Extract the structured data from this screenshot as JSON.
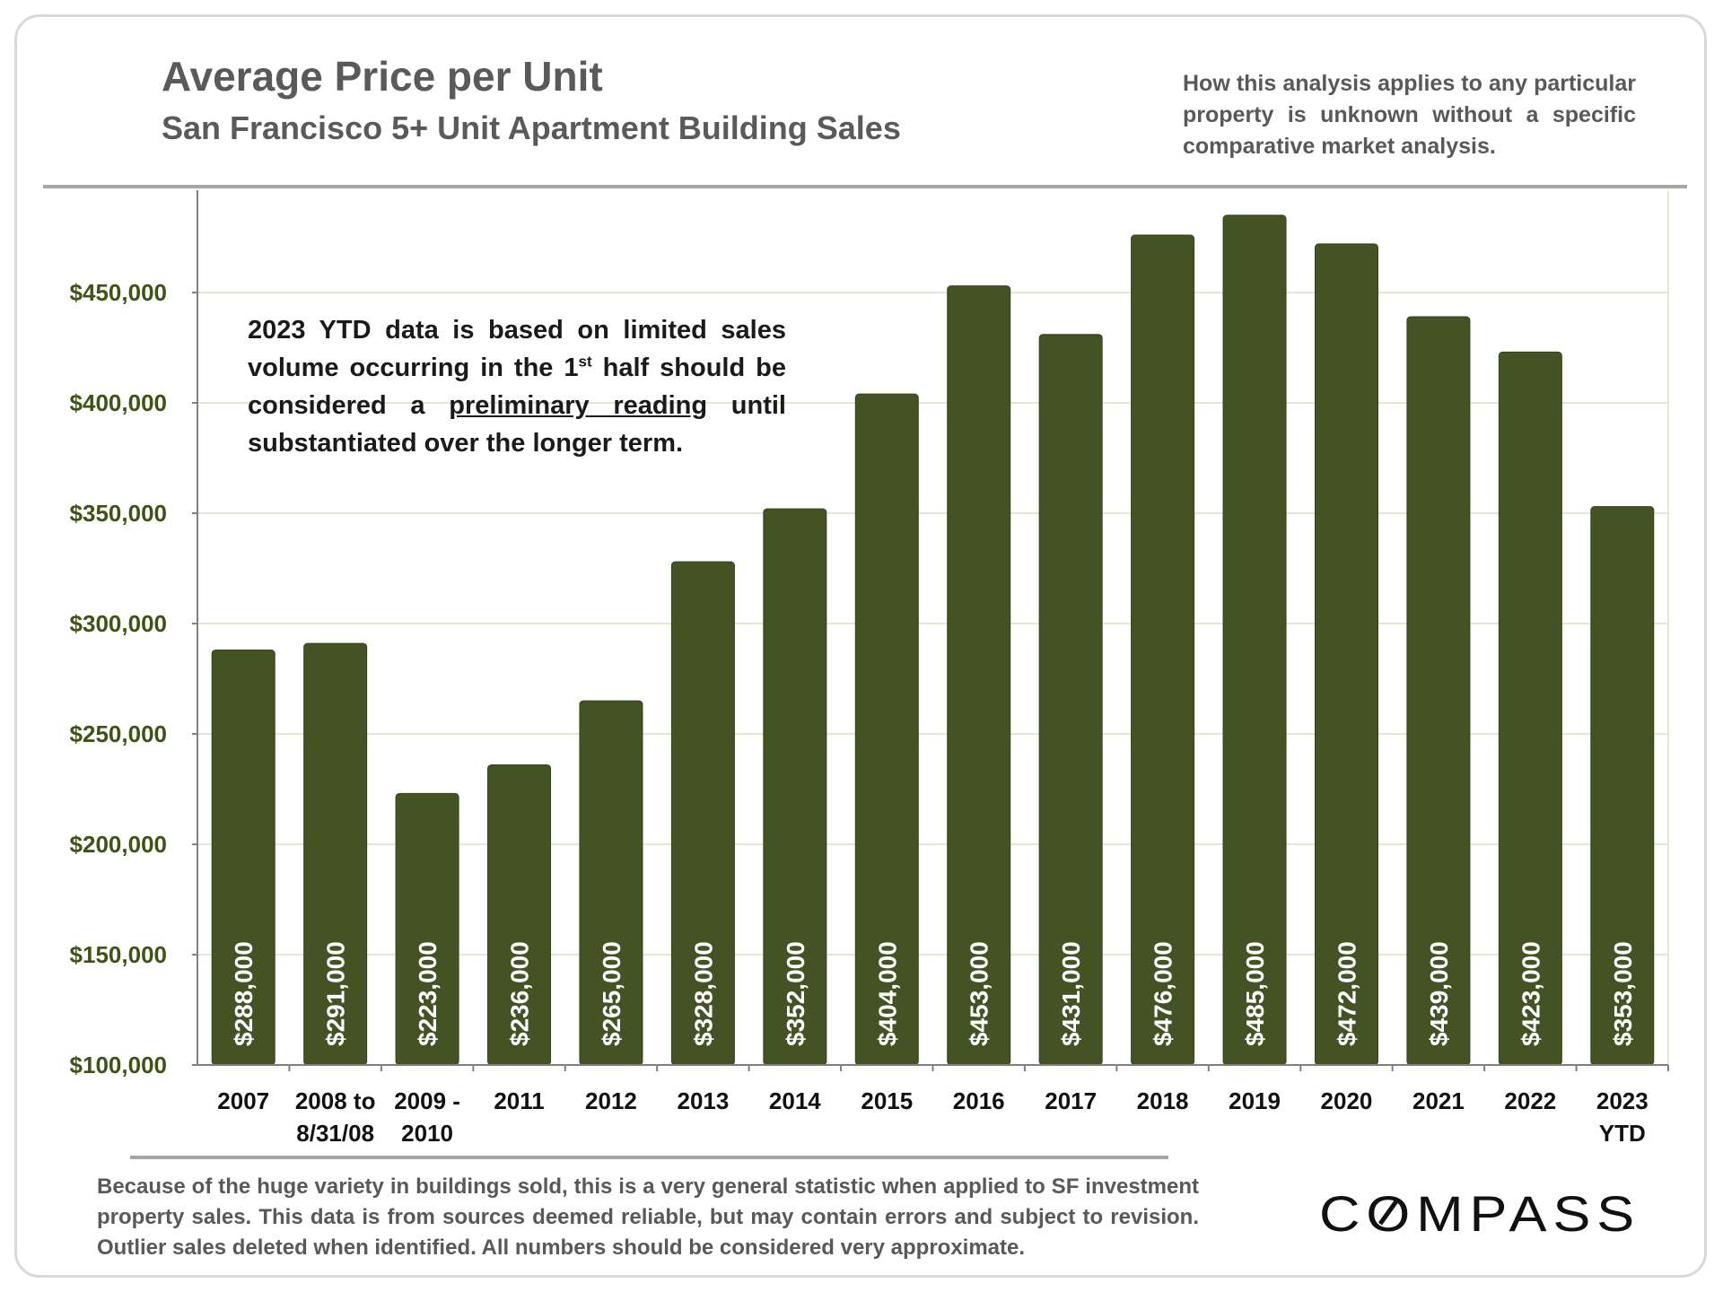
{
  "title": "Average Price per Unit",
  "subtitle": "San Francisco 5+ Unit Apartment Building Sales",
  "disclaimer_top": "How this analysis applies to any particular property is unknown without a specific comparative market analysis.",
  "annotation": {
    "line1": "2023 YTD data is based on limited sales",
    "line2_pre": "volume occurring in the 1",
    "line2_sup": "st",
    "line2_post": " half should be",
    "line3_pre": "considered a ",
    "line3_underline": "preliminary reading",
    "line3_post": " until",
    "line4": "substantiated over the longer term."
  },
  "footnote": "Because of the huge variety in buildings sold, this is a very general statistic when applied to SF investment property sales. This data is from sources deemed reliable, but may contain errors and subject to revision. Outlier sales deleted when identified. All numbers should be considered very approximate.",
  "logo_text": "COMPASS",
  "colors": {
    "bar": "#435323",
    "ytick": "#3f5315",
    "grid": "#e3e8d2",
    "bar_label": "#ffffff"
  },
  "chart_data": {
    "type": "bar",
    "title": "Average Price per Unit",
    "subtitle": "San Francisco 5+ Unit Apartment Building Sales",
    "categories": [
      [
        "2007"
      ],
      [
        "2008 to",
        "8/31/08"
      ],
      [
        "2009 -",
        "2010"
      ],
      [
        "2011"
      ],
      [
        "2012"
      ],
      [
        "2013"
      ],
      [
        "2014"
      ],
      [
        "2015"
      ],
      [
        "2016"
      ],
      [
        "2017"
      ],
      [
        "2018"
      ],
      [
        "2019"
      ],
      [
        "2020"
      ],
      [
        "2021"
      ],
      [
        "2022"
      ],
      [
        "2023",
        "YTD"
      ]
    ],
    "values": [
      288000,
      291000,
      223000,
      236000,
      265000,
      328000,
      352000,
      404000,
      453000,
      431000,
      476000,
      485000,
      472000,
      439000,
      423000,
      353000
    ],
    "value_labels": [
      "$288,000",
      "$291,000",
      "$223,000",
      "$236,000",
      "$265,000",
      "$328,000",
      "$352,000",
      "$404,000",
      "$453,000",
      "$431,000",
      "$476,000",
      "$485,000",
      "$472,000",
      "$439,000",
      "$423,000",
      "$353,000"
    ],
    "yticks": [
      100000,
      150000,
      200000,
      250000,
      300000,
      350000,
      400000,
      450000
    ],
    "ytick_labels": [
      "$100,000",
      "$150,000",
      "$200,000",
      "$250,000",
      "$300,000",
      "$350,000",
      "$400,000",
      "$450,000"
    ],
    "ylim": [
      100000,
      497000
    ],
    "xlabel": "",
    "ylabel": "",
    "grid": "horizontal",
    "legend": "none"
  }
}
